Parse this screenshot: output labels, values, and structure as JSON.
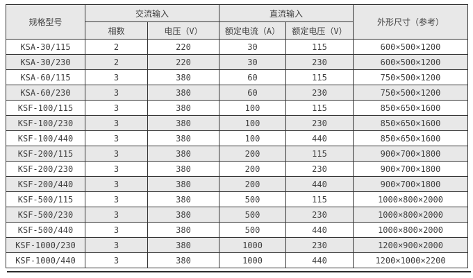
{
  "colors": {
    "border": "#333333",
    "header_background": "#e8e8e8",
    "row_alt_background": "#e8e8e8",
    "row_background": "#ffffff",
    "text": "#404040",
    "bottom_rule": "#2b2b2b"
  },
  "table": {
    "headers": {
      "model": "规格型号",
      "ac_input": "交流输入",
      "phases": "相数",
      "voltage": "电压（V）",
      "dc_input": "直流输入",
      "rated_current": "额定电流（A）",
      "rated_voltage": "额定电压（V）",
      "dimensions": "外形尺寸（参考）"
    },
    "rows": [
      [
        "KSA-30/115",
        "2",
        "220",
        "30",
        "115",
        "600×500×1200"
      ],
      [
        "KSA-30/230",
        "2",
        "220",
        "30",
        "230",
        "600×500×1200"
      ],
      [
        "KSA-60/115",
        "3",
        "380",
        "60",
        "115",
        "750×500×1200"
      ],
      [
        "KSA-60/230",
        "3",
        "380",
        "60",
        "230",
        "750×500×1200"
      ],
      [
        "KSF-100/115",
        "3",
        "380",
        "100",
        "115",
        "850×650×1600"
      ],
      [
        "KSF-100/230",
        "3",
        "380",
        "100",
        "230",
        "850×650×1600"
      ],
      [
        "KSF-100/440",
        "3",
        "380",
        "100",
        "440",
        "850×650×1600"
      ],
      [
        "KSF-200/115",
        "3",
        "380",
        "200",
        "115",
        "900×700×1800"
      ],
      [
        "KSF-200/230",
        "3",
        "380",
        "200",
        "230",
        "900×700×1800"
      ],
      [
        "KSF-200/440",
        "3",
        "380",
        "200",
        "440",
        "900×700×1800"
      ],
      [
        "KSF-500/115",
        "3",
        "380",
        "500",
        "115",
        "1000×800×2000"
      ],
      [
        "KSF-500/230",
        "3",
        "380",
        "500",
        "230",
        "1000×800×2000"
      ],
      [
        "KSF-500/440",
        "3",
        "380",
        "500",
        "440",
        "1000×800×2000"
      ],
      [
        "KSF-1000/230",
        "3",
        "380",
        "1000",
        "230",
        "1200×900×2000"
      ],
      [
        "KSF-1000/440",
        "3",
        "380",
        "1000",
        "440",
        "1200×1000×2200"
      ]
    ]
  }
}
